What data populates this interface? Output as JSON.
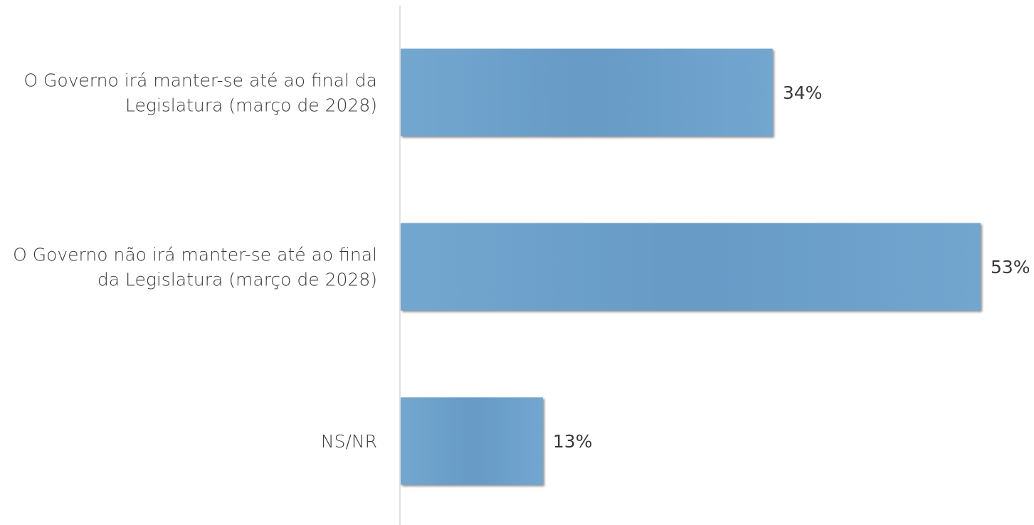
{
  "colors": {
    "bar": "#6b9fc8",
    "bar_light": "#74a8d0",
    "axis": "#d9d9d9",
    "text": "#3a3a3a"
  },
  "chart_data": {
    "type": "bar",
    "orientation": "horizontal",
    "categories": [
      [
        "O Governo irá manter-se até ao final da",
        "Legislatura (março de 2028)"
      ],
      [
        "O Governo não irá manter-se até ao final",
        "da Legislatura (março de 2028)"
      ],
      [
        "NS/NR"
      ]
    ],
    "values": [
      34,
      53,
      13
    ],
    "value_labels": [
      "34%",
      "53%",
      "13%"
    ],
    "xlim": [
      0,
      53
    ],
    "grid": false,
    "legend": "none"
  }
}
